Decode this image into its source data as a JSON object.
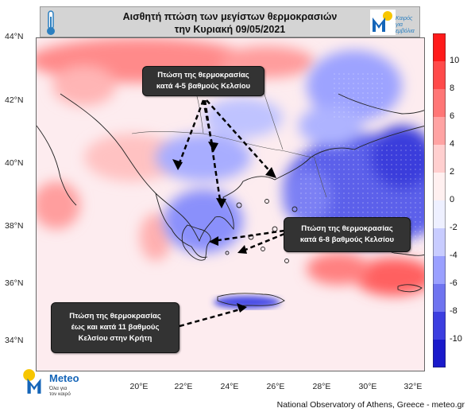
{
  "title": {
    "line1": "Αισθητή πτώση των μεγίστων θερμοκρασιών",
    "line2": "την Κυριακή 09/05/2021"
  },
  "brand_top": {
    "line1": "Καιρός για",
    "line2": "εμβόλια"
  },
  "lat_labels": [
    "44°N",
    "42°N",
    "40°N",
    "38°N",
    "36°N",
    "34°N"
  ],
  "lon_labels": [
    "20°E",
    "22°E",
    "24°E",
    "26°E",
    "28°E",
    "30°E",
    "32°E"
  ],
  "colorbar": {
    "ticks": [
      "10",
      "8",
      "6",
      "4",
      "2",
      "0",
      "-2",
      "-4",
      "-6",
      "-8",
      "-10"
    ],
    "colors": [
      "#ff1a1a",
      "#ff4a4a",
      "#ff7676",
      "#ffa3a3",
      "#ffcfcf",
      "#fff0f0",
      "#eef0ff",
      "#c8ccff",
      "#9aa0ff",
      "#6f74f0",
      "#3c3ee0",
      "#1a1acb"
    ]
  },
  "callouts": {
    "north": {
      "line1": "Πτώση της θερμοκρασίας",
      "line2": "κατά 4-5 βαθμούς Κελσίου"
    },
    "east": {
      "line1": "Πτώση της θερμοκρασίας",
      "line2": "κατά 6-8 βαθμούς Κελσίου"
    },
    "crete": {
      "line1": "Πτώση της θερμοκρασίας",
      "line2": "έως και κατά 11 βαθμούς",
      "line3": "Κελσίου στην Κρήτη"
    }
  },
  "footer": {
    "brand": "Meteo",
    "slogan_line1": "Όλα για",
    "slogan_line2": "τον καιρό",
    "credit": "National Observatory of Athens, Greece - meteo.gr"
  }
}
